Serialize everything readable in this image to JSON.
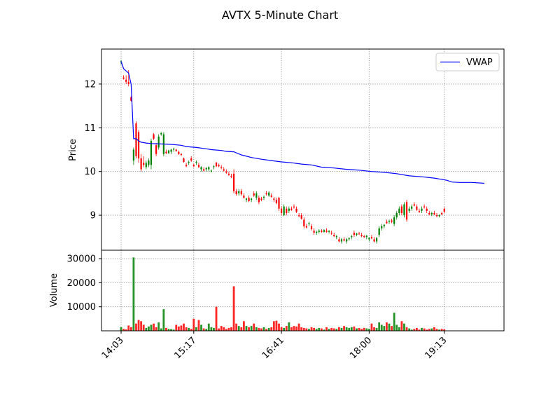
{
  "chart_data": {
    "type": "candlestick",
    "title": "AVTX 5-Minute Chart",
    "x_tick_labels": [
      "14:03",
      "15:17",
      "16:41",
      "18:00",
      "19:13"
    ],
    "price_panel": {
      "ylabel": "Price",
      "ylim": [
        8.2,
        12.8
      ],
      "y_ticks": [
        9,
        10,
        11,
        12
      ],
      "grid": true,
      "legend": {
        "placement": "top-right",
        "entries": [
          "VWAP"
        ]
      },
      "vwap": {
        "name": "VWAP",
        "color": "#0000ff",
        "points": [
          [
            0,
            12.52
          ],
          [
            1,
            12.35
          ],
          [
            2,
            12.3
          ],
          [
            3,
            12.25
          ],
          [
            4,
            12.0
          ],
          [
            5,
            10.75
          ],
          [
            6,
            10.75
          ],
          [
            7,
            10.7
          ],
          [
            8,
            10.67
          ],
          [
            10,
            10.65
          ],
          [
            12,
            10.64
          ],
          [
            16,
            10.63
          ],
          [
            20,
            10.62
          ],
          [
            24,
            10.6
          ],
          [
            26,
            10.57
          ],
          [
            30,
            10.55
          ],
          [
            34,
            10.52
          ],
          [
            36,
            10.5
          ],
          [
            40,
            10.48
          ],
          [
            42,
            10.46
          ],
          [
            45,
            10.45
          ],
          [
            48,
            10.38
          ],
          [
            52,
            10.32
          ],
          [
            56,
            10.28
          ],
          [
            60,
            10.25
          ],
          [
            64,
            10.22
          ],
          [
            68,
            10.2
          ],
          [
            72,
            10.17
          ],
          [
            76,
            10.15
          ],
          [
            80,
            10.1
          ],
          [
            85,
            10.08
          ],
          [
            90,
            10.05
          ],
          [
            95,
            10.03
          ],
          [
            100,
            10.0
          ],
          [
            105,
            9.98
          ],
          [
            110,
            9.95
          ],
          [
            115,
            9.9
          ],
          [
            120,
            9.88
          ],
          [
            125,
            9.85
          ],
          [
            130,
            9.8
          ],
          [
            132,
            9.76
          ],
          [
            135,
            9.75
          ],
          [
            140,
            9.75
          ],
          [
            145,
            9.73
          ]
        ]
      },
      "candles": [
        [
          0,
          12.5,
          12.55,
          12.45,
          12.52
        ],
        [
          1,
          12.15,
          12.2,
          12.1,
          12.12
        ],
        [
          2,
          12.1,
          12.2,
          12.0,
          12.05
        ],
        [
          3,
          12.05,
          12.32,
          11.95,
          12.0
        ],
        [
          4,
          11.7,
          11.72,
          11.6,
          11.62
        ],
        [
          5,
          10.25,
          10.55,
          10.15,
          10.5
        ],
        [
          6,
          11.1,
          11.15,
          10.3,
          10.35
        ],
        [
          7,
          10.9,
          10.95,
          10.2,
          10.3
        ],
        [
          8,
          10.3,
          10.4,
          10.0,
          10.05
        ],
        [
          9,
          10.2,
          10.35,
          10.1,
          10.15
        ],
        [
          10,
          10.1,
          10.25,
          10.05,
          10.2
        ],
        [
          11,
          10.15,
          10.3,
          10.1,
          10.25
        ],
        [
          12,
          10.15,
          10.75,
          10.05,
          10.7
        ],
        [
          13,
          10.85,
          10.88,
          10.72,
          10.75
        ],
        [
          14,
          10.6,
          10.65,
          10.35,
          10.4
        ],
        [
          15,
          10.55,
          10.85,
          10.5,
          10.8
        ],
        [
          16,
          10.85,
          10.9,
          10.82,
          10.88
        ],
        [
          17,
          10.4,
          10.9,
          10.35,
          10.85
        ],
        [
          18,
          10.45,
          10.5,
          10.4,
          10.42
        ],
        [
          19,
          10.42,
          10.5,
          10.4,
          10.48
        ],
        [
          20,
          10.45,
          10.52,
          10.4,
          10.5
        ],
        [
          21,
          10.5,
          10.55,
          10.45,
          10.52
        ],
        [
          22,
          10.5,
          10.52,
          10.45,
          10.47
        ],
        [
          23,
          10.45,
          10.48,
          10.38,
          10.4
        ],
        [
          24,
          10.4,
          10.42,
          10.35,
          10.38
        ],
        [
          25,
          10.3,
          10.32,
          10.2,
          10.22
        ],
        [
          26,
          10.15,
          10.2,
          10.1,
          10.12
        ],
        [
          27,
          10.2,
          10.25,
          10.15,
          10.22
        ],
        [
          28,
          10.3,
          10.35,
          10.22,
          10.25
        ],
        [
          29,
          10.15,
          10.18,
          10.1,
          10.12
        ],
        [
          30,
          10.2,
          10.25,
          10.15,
          10.22
        ],
        [
          31,
          10.15,
          10.2,
          10.08,
          10.1
        ],
        [
          32,
          10.05,
          10.12,
          10.0,
          10.1
        ],
        [
          33,
          10.05,
          10.1,
          10.0,
          10.02
        ],
        [
          34,
          10.05,
          10.1,
          10.0,
          10.08
        ],
        [
          35,
          10.05,
          10.12,
          10.0,
          10.1
        ],
        [
          36,
          10.0,
          10.05,
          9.98,
          10.02
        ],
        [
          37,
          10.1,
          10.15,
          10.05,
          10.12
        ],
        [
          38,
          10.2,
          10.22,
          10.1,
          10.12
        ],
        [
          39,
          10.15,
          10.18,
          10.1,
          10.12
        ],
        [
          40,
          10.1,
          10.15,
          10.05,
          10.08
        ],
        [
          41,
          10.05,
          10.1,
          10.0,
          10.02
        ],
        [
          42,
          10.0,
          10.05,
          9.95,
          9.97
        ],
        [
          43,
          9.95,
          10.0,
          9.9,
          9.92
        ],
        [
          44,
          9.9,
          9.95,
          9.85,
          9.88
        ],
        [
          45,
          9.95,
          10.05,
          9.5,
          9.55
        ],
        [
          46,
          9.55,
          9.6,
          9.45,
          9.48
        ],
        [
          47,
          9.5,
          9.6,
          9.45,
          9.55
        ],
        [
          48,
          9.55,
          9.6,
          9.45,
          9.48
        ],
        [
          49,
          9.45,
          9.5,
          9.38,
          9.4
        ],
        [
          50,
          9.35,
          9.4,
          9.3,
          9.38
        ],
        [
          51,
          9.4,
          9.45,
          9.3,
          9.32
        ],
        [
          52,
          9.35,
          9.4,
          9.3,
          9.38
        ],
        [
          53,
          9.5,
          9.55,
          9.42,
          9.45
        ],
        [
          54,
          9.4,
          9.55,
          9.35,
          9.5
        ],
        [
          55,
          9.4,
          9.45,
          9.25,
          9.3
        ],
        [
          56,
          9.38,
          9.42,
          9.32,
          9.35
        ],
        [
          57,
          9.4,
          9.45,
          9.35,
          9.42
        ],
        [
          58,
          9.5,
          9.55,
          9.45,
          9.48
        ],
        [
          59,
          9.45,
          9.55,
          9.42,
          9.52
        ],
        [
          60,
          9.45,
          9.5,
          9.4,
          9.42
        ],
        [
          61,
          9.38,
          9.42,
          9.3,
          9.35
        ],
        [
          62,
          9.35,
          9.4,
          9.25,
          9.28
        ],
        [
          63,
          9.4,
          9.42,
          9.1,
          9.15
        ],
        [
          64,
          9.15,
          9.2,
          9.0,
          9.05
        ],
        [
          65,
          9.0,
          9.25,
          8.98,
          9.2
        ],
        [
          66,
          9.15,
          9.2,
          9.0,
          9.05
        ],
        [
          67,
          9.1,
          9.2,
          9.05,
          9.15
        ],
        [
          68,
          9.15,
          9.2,
          9.1,
          9.12
        ],
        [
          69,
          9.2,
          9.25,
          9.15,
          9.18
        ],
        [
          70,
          9.15,
          9.2,
          9.05,
          9.08
        ],
        [
          71,
          9.0,
          9.05,
          8.95,
          8.98
        ],
        [
          72,
          9.0,
          9.05,
          8.9,
          8.92
        ],
        [
          73,
          8.9,
          8.95,
          8.7,
          8.75
        ],
        [
          74,
          8.75,
          8.8,
          8.7,
          8.72
        ],
        [
          75,
          8.8,
          8.85,
          8.75,
          8.82
        ],
        [
          76,
          8.75,
          8.8,
          8.65,
          8.68
        ],
        [
          77,
          8.65,
          8.7,
          8.55,
          8.6
        ],
        [
          78,
          8.6,
          8.65,
          8.55,
          8.62
        ],
        [
          79,
          8.62,
          8.68,
          8.58,
          8.65
        ],
        [
          80,
          8.65,
          8.68,
          8.6,
          8.62
        ],
        [
          81,
          8.62,
          8.68,
          8.6,
          8.66
        ],
        [
          82,
          8.65,
          8.7,
          8.6,
          8.62
        ],
        [
          83,
          8.62,
          8.66,
          8.58,
          8.64
        ],
        [
          84,
          8.6,
          8.65,
          8.55,
          8.58
        ],
        [
          85,
          8.55,
          8.6,
          8.5,
          8.52
        ],
        [
          86,
          8.5,
          8.55,
          8.45,
          8.52
        ],
        [
          87,
          8.45,
          8.5,
          8.38,
          8.4
        ],
        [
          88,
          8.4,
          8.48,
          8.35,
          8.45
        ],
        [
          89,
          8.45,
          8.5,
          8.4,
          8.42
        ],
        [
          90,
          8.4,
          8.48,
          8.35,
          8.45
        ],
        [
          91,
          8.45,
          8.5,
          8.42,
          8.47
        ],
        [
          92,
          8.5,
          8.55,
          8.45,
          8.52
        ],
        [
          93,
          8.6,
          8.65,
          8.5,
          8.55
        ],
        [
          94,
          8.55,
          8.6,
          8.52,
          8.58
        ],
        [
          95,
          8.58,
          8.62,
          8.55,
          8.57
        ],
        [
          96,
          8.55,
          8.6,
          8.5,
          8.52
        ],
        [
          97,
          8.52,
          8.55,
          8.48,
          8.5
        ],
        [
          98,
          8.5,
          8.55,
          8.45,
          8.53
        ],
        [
          99,
          8.45,
          8.5,
          8.4,
          8.48
        ],
        [
          100,
          8.5,
          8.55,
          8.45,
          8.47
        ],
        [
          101,
          8.45,
          8.5,
          8.38,
          8.4
        ],
        [
          102,
          8.4,
          8.5,
          8.35,
          8.48
        ],
        [
          103,
          8.55,
          8.75,
          8.5,
          8.7
        ],
        [
          104,
          8.7,
          8.8,
          8.65,
          8.75
        ],
        [
          105,
          8.75,
          8.8,
          8.7,
          8.78
        ],
        [
          106,
          8.85,
          8.9,
          8.8,
          8.82
        ],
        [
          107,
          8.85,
          8.9,
          8.8,
          8.87
        ],
        [
          108,
          8.88,
          8.92,
          8.82,
          8.85
        ],
        [
          109,
          8.8,
          9.0,
          8.75,
          8.95
        ],
        [
          110,
          8.95,
          9.1,
          8.9,
          9.05
        ],
        [
          111,
          9.05,
          9.2,
          9.0,
          9.15
        ],
        [
          112,
          9.2,
          9.25,
          9.0,
          9.05
        ],
        [
          113,
          9.0,
          9.3,
          8.95,
          9.25
        ],
        [
          114,
          9.3,
          9.35,
          8.85,
          8.9
        ],
        [
          115,
          9.1,
          9.2,
          9.05,
          9.15
        ],
        [
          116,
          9.15,
          9.25,
          9.1,
          9.2
        ],
        [
          117,
          9.25,
          9.3,
          9.2,
          9.22
        ],
        [
          118,
          9.2,
          9.25,
          9.1,
          9.12
        ],
        [
          119,
          9.1,
          9.15,
          9.05,
          9.08
        ],
        [
          120,
          9.1,
          9.2,
          9.05,
          9.15
        ],
        [
          121,
          9.2,
          9.25,
          9.15,
          9.18
        ],
        [
          122,
          9.15,
          9.2,
          9.05,
          9.1
        ],
        [
          123,
          9.05,
          9.1,
          9.0,
          9.02
        ],
        [
          124,
          9.02,
          9.08,
          8.98,
          9.05
        ],
        [
          125,
          9.05,
          9.1,
          9.0,
          9.02
        ],
        [
          126,
          9.0,
          9.05,
          8.95,
          8.98
        ],
        [
          127,
          8.98,
          9.02,
          8.95,
          9.0
        ],
        [
          128,
          9.05,
          9.08,
          9.0,
          9.02
        ],
        [
          129,
          9.15,
          9.18,
          9.05,
          9.08
        ]
      ]
    },
    "volume_panel": {
      "ylabel": "Volume",
      "y_ticks": [
        10000,
        20000,
        30000
      ],
      "ylim": [
        0,
        33500
      ],
      "grid": true,
      "values": [
        1500,
        800,
        600,
        2200,
        1500,
        30500,
        3000,
        4500,
        4000,
        2500,
        1200,
        1800,
        2500,
        3000,
        1500,
        3500,
        1000,
        9000,
        1200,
        800,
        700,
        500,
        2500,
        1800,
        2200,
        3000,
        1500,
        1200,
        800,
        5000,
        1500,
        4500,
        2500,
        1000,
        800,
        3000,
        1500,
        1200,
        10000,
        1000,
        2000,
        1500,
        800,
        1200,
        1500,
        18500,
        3000,
        2000,
        1500,
        4000,
        2000,
        1500,
        2000,
        3000,
        1500,
        1200,
        1000,
        1500,
        800,
        1200,
        1500,
        4000,
        4200,
        3000,
        1500,
        1200,
        2000,
        3500,
        1500,
        2000,
        1800,
        3000,
        1500,
        1200,
        1000,
        800,
        1500,
        1200,
        800,
        1200,
        1000,
        500,
        1500,
        800,
        1200,
        1000,
        800,
        1500,
        1200,
        2000,
        1500,
        1200,
        1500,
        1800,
        1000,
        1200,
        800,
        1200,
        1000,
        800,
        3000,
        1500,
        1200,
        3500,
        2500,
        2000,
        3500,
        3000,
        2000,
        7500,
        2500,
        1500,
        4000,
        3000,
        1500,
        1000,
        500,
        800,
        1200,
        500,
        1200,
        1000,
        500,
        800,
        1000,
        1500,
        800,
        500,
        800,
        600
      ],
      "up_color": "#008000",
      "down_color": "#ff0000",
      "neutral_color": "#4a6a8a"
    }
  }
}
